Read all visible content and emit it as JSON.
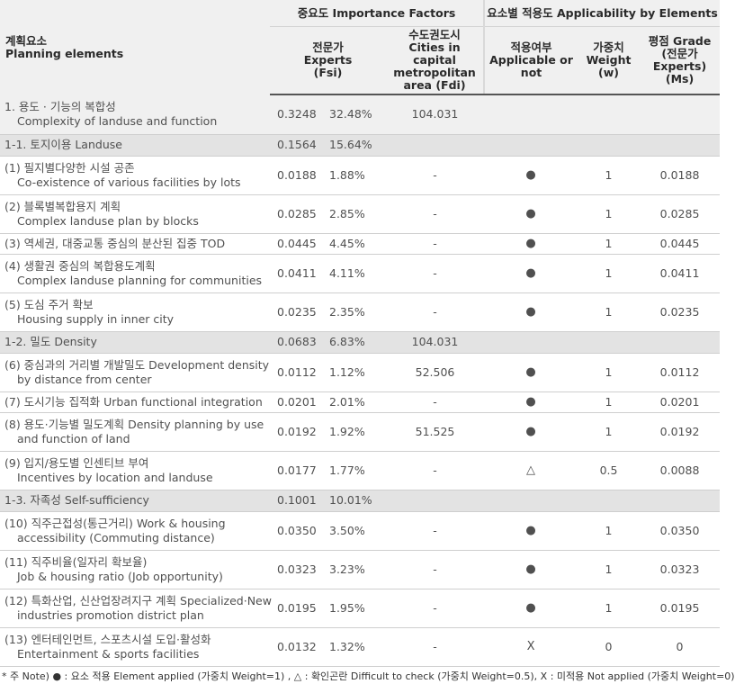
{
  "header": {
    "planning": [
      "계획요소",
      "Planning elements"
    ],
    "importance": "중요도 Importance Factors",
    "applicability": "요소별 적용도 Applicability by Elements",
    "fsi": [
      "전문가",
      "Experts",
      "(Fsi)"
    ],
    "fdi": [
      "수도권도시",
      "Cities in capital",
      "metropolitan",
      "area (Fdi)"
    ],
    "applicable": [
      "적용여부",
      "Applicable or",
      "not"
    ],
    "weight": [
      "가중치",
      "Weight",
      "(w)"
    ],
    "grade": [
      "평점 Grade",
      "(전문가",
      "Experts)",
      "(Ms)"
    ]
  },
  "rows": [
    {
      "lines": [
        "1. 용도 · 기능의 복합성",
        "Complexity of landuse and function"
      ],
      "fsi": "0.3248",
      "pct": "32.48%",
      "fdi": "104.031",
      "app": "",
      "w": "",
      "ms": ""
    },
    {
      "lines": [
        "1-1. 토지이용 Landuse"
      ],
      "fsi": "0.1564",
      "pct": "15.64%",
      "fdi": "",
      "app": "",
      "w": "",
      "ms": ""
    },
    {
      "lines": [
        "(1) 필지별다양한 시설 공존",
        "Co-existence of various facilities by lots"
      ],
      "fsi": "0.0188",
      "pct": "1.88%",
      "fdi": "-",
      "app": "●",
      "w": "1",
      "ms": "0.0188"
    },
    {
      "lines": [
        "(2) 블록별복합용지 계획",
        "Complex landuse plan by blocks"
      ],
      "fsi": "0.0285",
      "pct": "2.85%",
      "fdi": "-",
      "app": "●",
      "w": "1",
      "ms": "0.0285"
    },
    {
      "lines": [
        "(3) 역세권, 대중교통 중심의 분산된 집중  TOD"
      ],
      "fsi": "0.0445",
      "pct": "4.45%",
      "fdi": "-",
      "app": "●",
      "w": "1",
      "ms": "0.0445"
    },
    {
      "lines": [
        "(4) 생활권 중심의 복합용도계획",
        "Complex landuse planning for communities"
      ],
      "fsi": "0.0411",
      "pct": "4.11%",
      "fdi": "-",
      "app": "●",
      "w": "1",
      "ms": "0.0411"
    },
    {
      "lines": [
        "(5) 도심 주거 확보",
        "Housing supply in inner city"
      ],
      "fsi": "0.0235",
      "pct": "2.35%",
      "fdi": "-",
      "app": "●",
      "w": "1",
      "ms": "0.0235"
    },
    {
      "lines": [
        "1-2. 밀도 Density"
      ],
      "fsi": "0.0683",
      "pct": "6.83%",
      "fdi": "104.031",
      "app": "",
      "w": "",
      "ms": ""
    },
    {
      "lines": [
        "(6) 중심과의 거리별 개발밀도 Development density",
        "by distance from center"
      ],
      "fsi": "0.0112",
      "pct": "1.12%",
      "fdi": "52.506",
      "app": "●",
      "w": "1",
      "ms": "0.0112"
    },
    {
      "lines": [
        "(7) 도시기능 집적화 Urban functional integration"
      ],
      "fsi": "0.0201",
      "pct": "2.01%",
      "fdi": "-",
      "app": "●",
      "w": "1",
      "ms": "0.0201"
    },
    {
      "lines": [
        "(8) 용도·기능별 밀도계획 Density planning by use",
        "and function of land"
      ],
      "fsi": "0.0192",
      "pct": "1.92%",
      "fdi": "51.525",
      "app": "●",
      "w": "1",
      "ms": "0.0192"
    },
    {
      "lines": [
        "(9) 입지/용도별 인센티브 부여",
        "Incentives by location and landuse"
      ],
      "fsi": "0.0177",
      "pct": "1.77%",
      "fdi": "-",
      "app": "△",
      "w": "0.5",
      "ms": "0.0088"
    },
    {
      "lines": [
        "1-3. 자족성 Self-sufficiency"
      ],
      "fsi": "0.1001",
      "pct": "10.01%",
      "fdi": "",
      "app": "",
      "w": "",
      "ms": ""
    },
    {
      "lines": [
        "(10) 직주근접성(통근거리)    Work & housing",
        "accessibility (Commuting distance)"
      ],
      "fsi": "0.0350",
      "pct": "3.50%",
      "fdi": "-",
      "app": "●",
      "w": "1",
      "ms": "0.0350"
    },
    {
      "lines": [
        "(11) 직주비율(일자리 확보율)",
        "Job &  housing ratio (Job opportunity)"
      ],
      "fsi": "0.0323",
      "pct": "3.23%",
      "fdi": "-",
      "app": "●",
      "w": "1",
      "ms": "0.0323"
    },
    {
      "lines": [
        "(12) 특화산업, 신산업장려지구 계획 Specialized·New",
        "industries promotion district plan"
      ],
      "fsi": "0.0195",
      "pct": "1.95%",
      "fdi": "-",
      "app": "●",
      "w": "1",
      "ms": "0.0195"
    },
    {
      "lines": [
        "(13) 엔터테인먼트, 스포츠시설 도입·활성화",
        "Entertainment & sports facilities"
      ],
      "fsi": "0.0132",
      "pct": "1.32%",
      "fdi": "-",
      "app": "X",
      "w": "0",
      "ms": "0"
    }
  ],
  "note": "* 주 Note) ● : 요소 적용 Element applied (가중치 Weight=1) , △ : 확인곤란 Difficult to check (가중치 Weight=0.5), X : 미적용 Not applied (가중치 Weight=0)"
}
